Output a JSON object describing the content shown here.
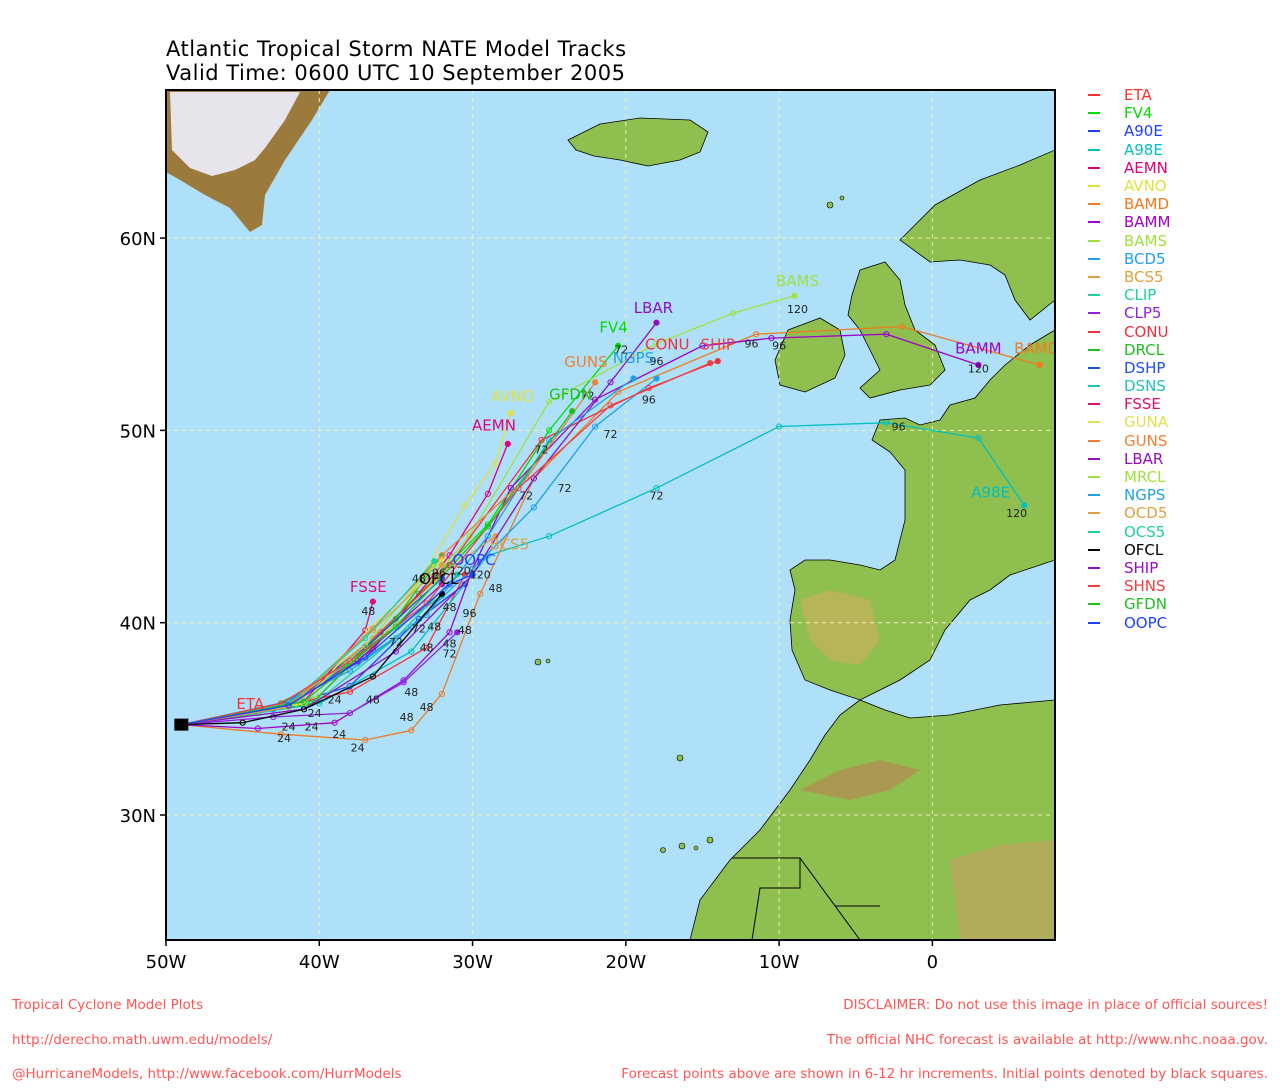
{
  "title": {
    "line1": "Atlantic Tropical Storm NATE Model Tracks",
    "line2": "Valid Time: 0600 UTC 10 September 2005"
  },
  "axes": {
    "lat_labels": [
      "60N",
      "50N",
      "40N",
      "30N"
    ],
    "lon_labels": [
      "50W",
      "40W",
      "30W",
      "20W",
      "10W",
      "0"
    ]
  },
  "map_extent": {
    "lon_min": -50,
    "lon_max": 8,
    "lat_min": 23.5,
    "lat_max": 67.7
  },
  "colors": {
    "ocean": "#aee0fa",
    "land": "#8fbf4f",
    "ice": "#e8e4ec",
    "grid": "#f3f3b0"
  },
  "legend": [
    {
      "name": "ETA",
      "color": "#ff3030"
    },
    {
      "name": "FV4",
      "color": "#00dd00"
    },
    {
      "name": "A90E",
      "color": "#2040ff"
    },
    {
      "name": "A98E",
      "color": "#00c0c0"
    },
    {
      "name": "AEMN",
      "color": "#e0007a"
    },
    {
      "name": "AVNO",
      "color": "#e0e040"
    },
    {
      "name": "BAMD",
      "color": "#f07a20"
    },
    {
      "name": "BAMM",
      "color": "#a000d0"
    },
    {
      "name": "BAMS",
      "color": "#a0e040"
    },
    {
      "name": "BCD5",
      "color": "#20a0e8"
    },
    {
      "name": "BCS5",
      "color": "#e0a040"
    },
    {
      "name": "CLIP",
      "color": "#20d0a0"
    },
    {
      "name": "CLP5",
      "color": "#9020e0"
    },
    {
      "name": "CONU",
      "color": "#f03040"
    },
    {
      "name": "DRCL",
      "color": "#20c020"
    },
    {
      "name": "DSHP",
      "color": "#2050e0"
    },
    {
      "name": "DSNS",
      "color": "#20c0c0"
    },
    {
      "name": "FSSE",
      "color": "#e01070"
    },
    {
      "name": "GUNA",
      "color": "#e0e050"
    },
    {
      "name": "GUNS",
      "color": "#f08030"
    },
    {
      "name": "LBAR",
      "color": "#9010c0"
    },
    {
      "name": "MRCL",
      "color": "#a0e040"
    },
    {
      "name": "NGPS",
      "color": "#20a0e0"
    },
    {
      "name": "OCD5",
      "color": "#e0a040"
    },
    {
      "name": "OCS5",
      "color": "#20d0a0"
    },
    {
      "name": "OFCL",
      "color": "#000000"
    },
    {
      "name": "SHIP",
      "color": "#9010c0"
    },
    {
      "name": "SHNS",
      "color": "#f04040"
    },
    {
      "name": "GFDN",
      "color": "#20c020"
    },
    {
      "name": "OOPC",
      "color": "#2040ff"
    }
  ],
  "track_labels": [
    {
      "text": "ETA",
      "lon": -44.5,
      "lat": 35.5,
      "color": "#ff3030"
    },
    {
      "text": "FV4",
      "lon": -20.8,
      "lat": 55.1,
      "color": "#00dd00"
    },
    {
      "text": "AEMN",
      "lon": -28.6,
      "lat": 50.0,
      "color": "#e0007a"
    },
    {
      "text": "AVNO",
      "lon": -27.4,
      "lat": 51.5,
      "color": "#e0e040"
    },
    {
      "text": "BAMM",
      "lon": 3.0,
      "lat": 54.0,
      "color": "#a000d0"
    },
    {
      "text": "BAMD",
      "lon": 6.8,
      "lat": 54.0,
      "color": "#f07a20"
    },
    {
      "text": "BAMS",
      "lon": -8.8,
      "lat": 57.5,
      "color": "#a0e040"
    },
    {
      "text": "LBAR",
      "lon": -18.2,
      "lat": 56.1,
      "color": "#9010c0"
    },
    {
      "text": "CONU",
      "lon": -17.3,
      "lat": 54.2,
      "color": "#f03040"
    },
    {
      "text": "SHIP",
      "lon": -14.0,
      "lat": 54.2,
      "color": "#f04040"
    },
    {
      "text": "GUNS",
      "lon": -22.6,
      "lat": 53.3,
      "color": "#f08030"
    },
    {
      "text": "NGPS",
      "lon": -19.5,
      "lat": 53.5,
      "color": "#20a0e0"
    },
    {
      "text": "GFDN",
      "lon": -23.6,
      "lat": 51.6,
      "color": "#20c020"
    },
    {
      "text": "FSSE",
      "lon": -36.8,
      "lat": 41.6,
      "color": "#e01070"
    },
    {
      "text": "OFCL",
      "lon": -32.2,
      "lat": 42.0,
      "color": "#000000"
    },
    {
      "text": "OOPC",
      "lon": -29.9,
      "lat": 43.0,
      "color": "#2040ff"
    },
    {
      "text": "BCS5",
      "lon": -27.6,
      "lat": 43.8,
      "color": "#e0a040"
    },
    {
      "text": "A98E",
      "lon": 3.8,
      "lat": 46.5,
      "color": "#00c0c0"
    }
  ],
  "tracks": [
    {
      "name": "ETA",
      "color": "#ff3030",
      "points": [
        [
          -49,
          34.7
        ],
        [
          -43.5,
          35.5
        ],
        [
          -38,
          36.4
        ],
        [
          -33,
          38.7
        ],
        [
          -30.5,
          42.5
        ]
      ]
    },
    {
      "name": "FV4",
      "color": "#00dd00",
      "points": [
        [
          -49,
          34.7
        ],
        [
          -44,
          35.3
        ],
        [
          -39,
          37.2
        ],
        [
          -33.5,
          41.5
        ],
        [
          -29,
          45.1
        ],
        [
          -25,
          50.0
        ],
        [
          -20.5,
          54.4
        ]
      ]
    },
    {
      "name": "A90E",
      "color": "#2040ff",
      "points": [
        [
          -49,
          34.7
        ],
        [
          -43,
          35.5
        ],
        [
          -38,
          36.7
        ],
        [
          -33.5,
          40.2
        ],
        [
          -30.5,
          42.0
        ]
      ]
    },
    {
      "name": "A98E",
      "color": "#00c0c0",
      "points": [
        [
          -49,
          34.7
        ],
        [
          -40,
          35.8
        ],
        [
          -34,
          38.5
        ],
        [
          -29,
          43.5
        ],
        [
          -25,
          44.5
        ],
        [
          -18,
          47.0
        ],
        [
          -10,
          50.2
        ],
        [
          -3,
          50.4
        ],
        [
          3,
          49.6
        ],
        [
          6,
          46.1
        ]
      ]
    },
    {
      "name": "AEMN",
      "color": "#e0007a",
      "points": [
        [
          -49,
          34.7
        ],
        [
          -42,
          35.8
        ],
        [
          -36.5,
          38.6
        ],
        [
          -31.5,
          43.5
        ],
        [
          -29,
          46.7
        ],
        [
          -27.7,
          49.3
        ]
      ]
    },
    {
      "name": "AVNO",
      "color": "#e0e040",
      "points": [
        [
          -49,
          34.7
        ],
        [
          -41,
          35.9
        ],
        [
          -35.5,
          39.5
        ],
        [
          -30.5,
          46.1
        ],
        [
          -28.5,
          48.3
        ],
        [
          -27.5,
          50.9
        ]
      ]
    },
    {
      "name": "BAMD",
      "color": "#f07a20",
      "points": [
        [
          -49,
          34.7
        ],
        [
          -42.5,
          34.2
        ],
        [
          -37,
          33.9
        ],
        [
          -34,
          34.4
        ],
        [
          -32,
          36.3
        ],
        [
          -29.5,
          41.5
        ],
        [
          -26,
          47.5
        ],
        [
          -20.5,
          52.0
        ],
        [
          -11.5,
          55.0
        ],
        [
          -2,
          55.4
        ],
        [
          7,
          53.4
        ]
      ]
    },
    {
      "name": "BAMM",
      "color": "#a000d0",
      "points": [
        [
          -49,
          34.7
        ],
        [
          -44,
          34.5
        ],
        [
          -39,
          34.8
        ],
        [
          -34.5,
          37.0
        ],
        [
          -31.5,
          39.5
        ],
        [
          -30,
          42.8
        ],
        [
          -27.5,
          47.0
        ],
        [
          -22,
          51.6
        ],
        [
          -15,
          54.4
        ],
        [
          -10.5,
          54.8
        ],
        [
          -3,
          55.0
        ],
        [
          3,
          53.4
        ]
      ]
    },
    {
      "name": "BAMS",
      "color": "#a0e040",
      "points": [
        [
          -49,
          34.7
        ],
        [
          -40,
          36.2
        ],
        [
          -35,
          40.0
        ],
        [
          -30.2,
          44.5
        ],
        [
          -25,
          51.5
        ],
        [
          -18,
          54.5
        ],
        [
          -13,
          56.1
        ],
        [
          -9,
          57.0
        ]
      ]
    },
    {
      "name": "BCD5",
      "color": "#20a0e8",
      "points": [
        [
          -49,
          34.7
        ],
        [
          -43,
          35.6
        ],
        [
          -37.5,
          37.9
        ],
        [
          -34,
          39.8
        ],
        [
          -30,
          42.8
        ],
        [
          -26,
          46.0
        ],
        [
          -22,
          50.2
        ],
        [
          -18,
          52.7
        ]
      ]
    },
    {
      "name": "BCS5",
      "color": "#e0a040",
      "points": [
        [
          -49,
          34.7
        ],
        [
          -42,
          35.7
        ],
        [
          -36.5,
          39.2
        ],
        [
          -32,
          42.5
        ],
        [
          -28.5,
          44.5
        ]
      ]
    },
    {
      "name": "CLIP",
      "color": "#20d0a0",
      "points": [
        [
          -49,
          34.7
        ],
        [
          -40,
          36.0
        ],
        [
          -35,
          39.2
        ],
        [
          -31,
          42.5
        ]
      ]
    },
    {
      "name": "CLP5",
      "color": "#9020e0",
      "points": [
        [
          -49,
          34.7
        ],
        [
          -43,
          35.1
        ],
        [
          -38,
          35.3
        ],
        [
          -34.5,
          36.9
        ],
        [
          -31,
          39.5
        ]
      ]
    },
    {
      "name": "CONU",
      "color": "#f03040",
      "points": [
        [
          -49,
          34.7
        ],
        [
          -41.5,
          35.8
        ],
        [
          -36,
          39.5
        ],
        [
          -31.5,
          43.0
        ],
        [
          -25.5,
          49.5
        ],
        [
          -18.5,
          52.2
        ],
        [
          -14,
          53.6
        ]
      ]
    },
    {
      "name": "DRCL",
      "color": "#20c020",
      "points": [
        [
          -49,
          34.7
        ],
        [
          -40.5,
          35.8
        ],
        [
          -35,
          40.2
        ],
        [
          -32,
          43.5
        ]
      ]
    },
    {
      "name": "DSHP",
      "color": "#2050e0",
      "points": [
        [
          -49,
          34.7
        ],
        [
          -42,
          35.9
        ],
        [
          -37,
          38.7
        ],
        [
          -32,
          42.3
        ]
      ]
    },
    {
      "name": "DSNS",
      "color": "#20c0c0",
      "points": [
        [
          -49,
          34.7
        ],
        [
          -42,
          35.6
        ],
        [
          -37.5,
          38.3
        ],
        [
          -32,
          41.4
        ]
      ]
    },
    {
      "name": "FSSE",
      "color": "#e01070",
      "points": [
        [
          -49,
          34.7
        ],
        [
          -41,
          35.9
        ],
        [
          -37,
          39.6
        ],
        [
          -36.5,
          41.1
        ]
      ]
    },
    {
      "name": "GUNA",
      "color": "#e0e050",
      "points": [
        [
          -49,
          34.7
        ],
        [
          -41,
          35.8
        ],
        [
          -36.8,
          39.6
        ],
        [
          -32,
          43.3
        ]
      ]
    },
    {
      "name": "GUNS",
      "color": "#f08030",
      "points": [
        [
          -49,
          34.7
        ],
        [
          -42,
          35.7
        ],
        [
          -36.5,
          39.7
        ],
        [
          -32,
          43.5
        ],
        [
          -26.5,
          47.5
        ],
        [
          -22,
          52.5
        ]
      ]
    },
    {
      "name": "LBAR",
      "color": "#9010c0",
      "points": [
        [
          -49,
          34.7
        ],
        [
          -41,
          35.5
        ],
        [
          -35,
          38.5
        ],
        [
          -30,
          42.5
        ],
        [
          -26,
          47.5
        ],
        [
          -21,
          52.5
        ],
        [
          -18,
          55.6
        ]
      ]
    },
    {
      "name": "MRCL",
      "color": "#a0e040",
      "points": [
        [
          -49,
          34.7
        ],
        [
          -41.5,
          35.8
        ],
        [
          -37,
          38.8
        ],
        [
          -32.5,
          43.0
        ]
      ]
    },
    {
      "name": "NGPS",
      "color": "#20a0e0",
      "points": [
        [
          -49,
          34.7
        ],
        [
          -43,
          35.5
        ],
        [
          -38,
          37.5
        ],
        [
          -33,
          40.4
        ],
        [
          -29,
          44.5
        ],
        [
          -25,
          49.5
        ],
        [
          -19.5,
          52.7
        ]
      ]
    },
    {
      "name": "OCD5",
      "color": "#e0a040",
      "points": [
        [
          -49,
          34.7
        ],
        [
          -42,
          35.6
        ],
        [
          -36.5,
          39.6
        ],
        [
          -32,
          43.0
        ]
      ]
    },
    {
      "name": "OCS5",
      "color": "#20d0a0",
      "points": [
        [
          -49,
          34.7
        ],
        [
          -42,
          35.8
        ],
        [
          -37,
          39.2
        ],
        [
          -32.5,
          43.2
        ]
      ]
    },
    {
      "name": "OFCL",
      "color": "#000000",
      "points": [
        [
          -49,
          34.7
        ],
        [
          -45,
          34.8
        ],
        [
          -41,
          35.5
        ],
        [
          -36.5,
          37.2
        ],
        [
          -32,
          41.5
        ]
      ]
    },
    {
      "name": "SHIP",
      "color": "#9010c0",
      "points": [
        [
          -49,
          34.7
        ],
        [
          -42,
          35.7
        ],
        [
          -37.5,
          38.0
        ],
        [
          -32,
          42.0
        ]
      ]
    },
    {
      "name": "SHNS",
      "color": "#f04040",
      "points": [
        [
          -49,
          34.7
        ],
        [
          -42.5,
          35.8
        ],
        [
          -38,
          38.0
        ],
        [
          -33,
          41.0
        ],
        [
          -27,
          47.0
        ],
        [
          -21,
          51.3
        ],
        [
          -14.5,
          53.5
        ]
      ]
    },
    {
      "name": "GFDN",
      "color": "#20c020",
      "points": [
        [
          -49,
          34.7
        ],
        [
          -41,
          35.9
        ],
        [
          -35,
          39.8
        ],
        [
          -29,
          45.0
        ],
        [
          -23.5,
          51.0
        ]
      ]
    },
    {
      "name": "OOPC",
      "color": "#2040ff",
      "points": [
        [
          -49,
          34.7
        ],
        [
          -42,
          35.7
        ],
        [
          -37,
          38.2
        ],
        [
          -31.5,
          42.0
        ],
        [
          -30,
          42.5
        ]
      ]
    }
  ],
  "hour_labels": [
    {
      "text": "24",
      "lon": -42.3,
      "lat": 33.8
    },
    {
      "text": "24",
      "lon": -38.7,
      "lat": 34.0
    },
    {
      "text": "24",
      "lon": -37.5,
      "lat": 33.3
    },
    {
      "text": "24",
      "lon": -42,
      "lat": 34.4
    },
    {
      "text": "24",
      "lon": -40.5,
      "lat": 34.4
    },
    {
      "text": "24",
      "lon": -40.3,
      "lat": 35.1
    },
    {
      "text": "24",
      "lon": -39,
      "lat": 35.8
    },
    {
      "text": "48",
      "lon": -36.5,
      "lat": 35.8
    },
    {
      "text": "48",
      "lon": -34.3,
      "lat": 34.9
    },
    {
      "text": "48",
      "lon": -33,
      "lat": 35.4
    },
    {
      "text": "48",
      "lon": -34,
      "lat": 36.2
    },
    {
      "text": "48",
      "lon": -36.8,
      "lat": 40.4
    },
    {
      "text": "48",
      "lon": -33.5,
      "lat": 42.1
    },
    {
      "text": "48",
      "lon": -33,
      "lat": 38.5
    },
    {
      "text": "48",
      "lon": -31.5,
      "lat": 38.7
    },
    {
      "text": "48",
      "lon": -30.5,
      "lat": 39.4
    },
    {
      "text": "48",
      "lon": -28.5,
      "lat": 41.6
    },
    {
      "text": "48",
      "lon": -32.5,
      "lat": 39.6
    },
    {
      "text": "48",
      "lon": -31.5,
      "lat": 40.6
    },
    {
      "text": "72",
      "lon": -35,
      "lat": 38.8
    },
    {
      "text": "72",
      "lon": -31.5,
      "lat": 38.2
    },
    {
      "text": "72",
      "lon": -33.5,
      "lat": 39.5
    },
    {
      "text": "72",
      "lon": -25.5,
      "lat": 48.8
    },
    {
      "text": "72",
      "lon": -24,
      "lat": 46.8
    },
    {
      "text": "72",
      "lon": -26.5,
      "lat": 46.4
    },
    {
      "text": "72",
      "lon": -21,
      "lat": 49.6
    },
    {
      "text": "72",
      "lon": -20.3,
      "lat": 54.0
    },
    {
      "text": "72",
      "lon": -18,
      "lat": 46.4
    },
    {
      "text": "72",
      "lon": -22.5,
      "lat": 51.6
    },
    {
      "text": "96",
      "lon": -32.2,
      "lat": 42.4
    },
    {
      "text": "96",
      "lon": -30.2,
      "lat": 40.3
    },
    {
      "text": "96",
      "lon": -18.5,
      "lat": 51.4
    },
    {
      "text": "96",
      "lon": -11.8,
      "lat": 54.3
    },
    {
      "text": "96",
      "lon": -10,
      "lat": 54.2
    },
    {
      "text": "96",
      "lon": -2.2,
      "lat": 50.0
    },
    {
      "text": "96",
      "lon": -18,
      "lat": 53.4
    },
    {
      "text": "120",
      "lon": -29.5,
      "lat": 42.3
    },
    {
      "text": "120",
      "lon": -8.8,
      "lat": 56.1
    },
    {
      "text": "120",
      "lon": 3,
      "lat": 53.0
    },
    {
      "text": "120",
      "lon": 5.5,
      "lat": 45.5
    },
    {
      "text": "120",
      "lon": -30.8,
      "lat": 42.5
    }
  ],
  "footer": {
    "left_line1": "Tropical Cyclone Model Plots",
    "left_line2": "http://derecho.math.uwm.edu/models/",
    "left_line3": "@HurricaneModels, http://www.facebook.com/HurrModels",
    "right_line1": "DISCLAIMER: Do not use this image in place of official sources!",
    "right_line2": "The official NHC forecast is available at http://www.nhc.noaa.gov.",
    "right_line3": "Forecast points above are shown in 6-12 hr increments. Initial points denoted by black squares."
  }
}
